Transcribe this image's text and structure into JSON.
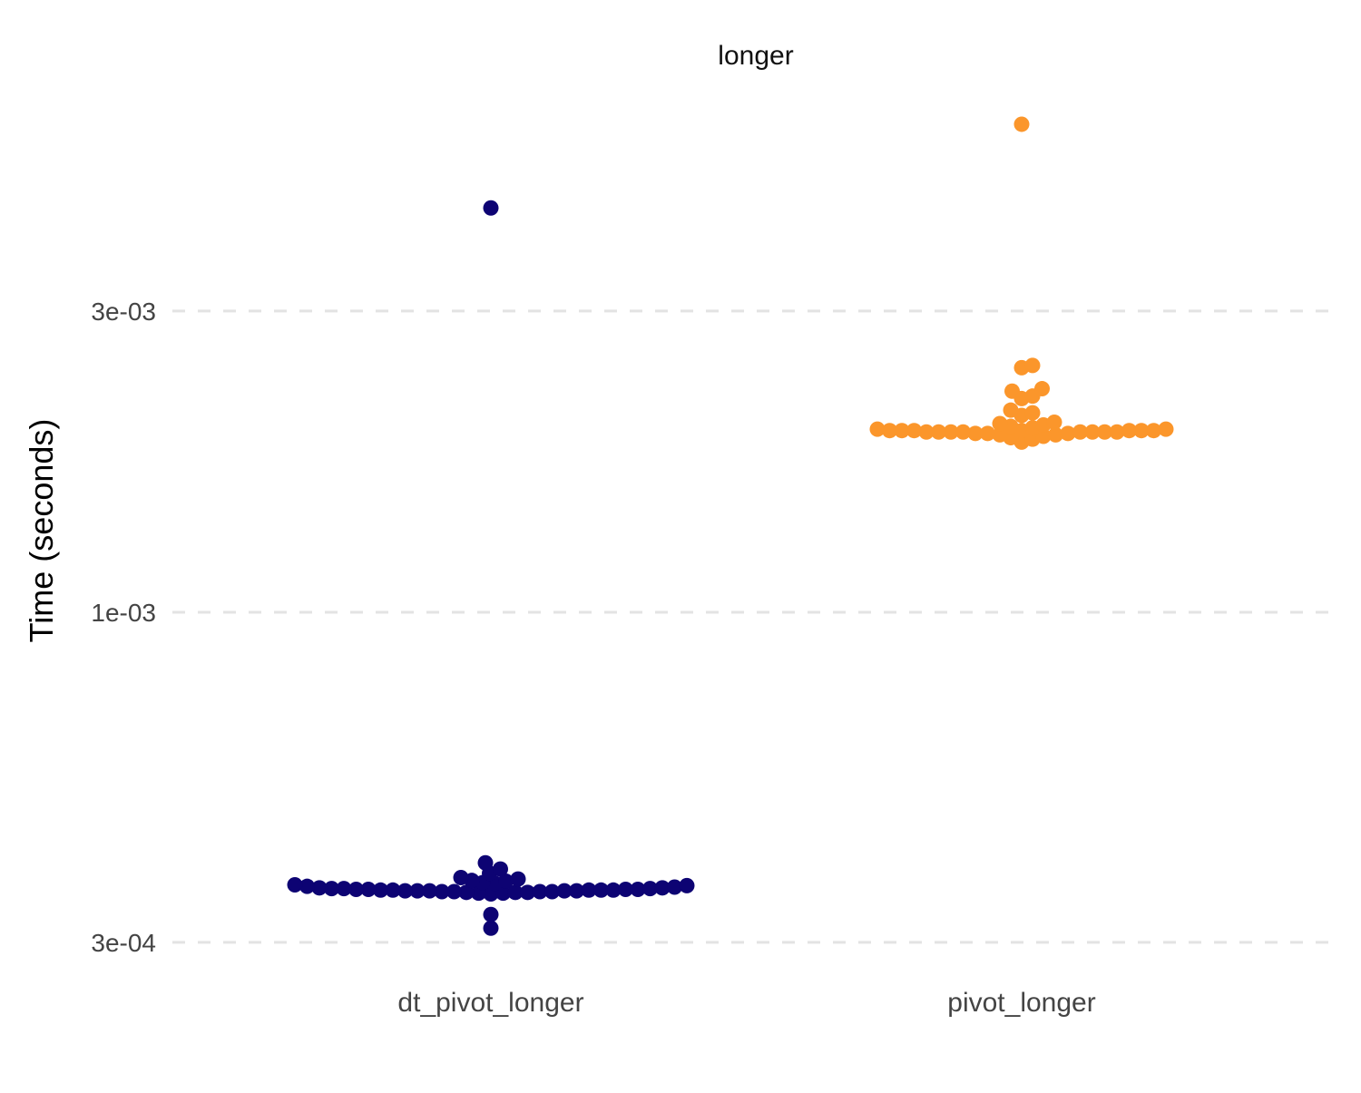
{
  "chart_data": {
    "type": "scatter",
    "subtype": "beeswarm",
    "title": "longer",
    "xlabel": "",
    "ylabel": "Time (seconds)",
    "y_scale": "log10",
    "ylim": [
      0.00028,
      0.0065
    ],
    "y_ticks": [
      0.0003,
      0.001,
      0.003
    ],
    "y_tick_labels": [
      "3e-04",
      "1e-03",
      "3e-03"
    ],
    "grid": "horizontal dashed major",
    "legend": "none",
    "categories": [
      "dt_pivot_longer",
      "pivot_longer"
    ],
    "series": [
      {
        "category": "dt_pivot_longer",
        "color": "#0d0373",
        "values": [
          0.00437,
          0.000401,
          0.000392,
          0.000386,
          0.00038,
          0.000378,
          0.000376,
          0.000375,
          0.000373,
          0.000372,
          0.00037,
          0.000369,
          0.000368,
          0.000367,
          0.000366,
          0.000366,
          0.000365,
          0.000365,
          0.000365,
          0.000364,
          0.000364,
          0.000364,
          0.000364,
          0.000363,
          0.000363,
          0.000363,
          0.000363,
          0.000363,
          0.000362,
          0.000362,
          0.000362,
          0.000362,
          0.000362,
          0.000361,
          0.000361,
          0.000361,
          0.000361,
          0.00036,
          0.00036,
          0.00036,
          0.000359,
          0.000359,
          0.000358,
          0.000332,
          0.000316
        ]
      },
      {
        "category": "pivot_longer",
        "color": "#fb962b",
        "values": [
          0.00593,
          0.00246,
          0.00244,
          0.00226,
          0.00224,
          0.0022,
          0.00218,
          0.00209,
          0.00207,
          0.00205,
          0.002,
          0.00199,
          0.00198,
          0.00197,
          0.00196,
          0.00195,
          0.00195,
          0.00194,
          0.00194,
          0.00194,
          0.00194,
          0.00194,
          0.00194,
          0.00194,
          0.00193,
          0.00193,
          0.00193,
          0.00193,
          0.00193,
          0.00193,
          0.00193,
          0.00193,
          0.00192,
          0.00192,
          0.00192,
          0.00191,
          0.00191,
          0.0019,
          0.00189,
          0.00188,
          0.00186
        ]
      }
    ]
  }
}
